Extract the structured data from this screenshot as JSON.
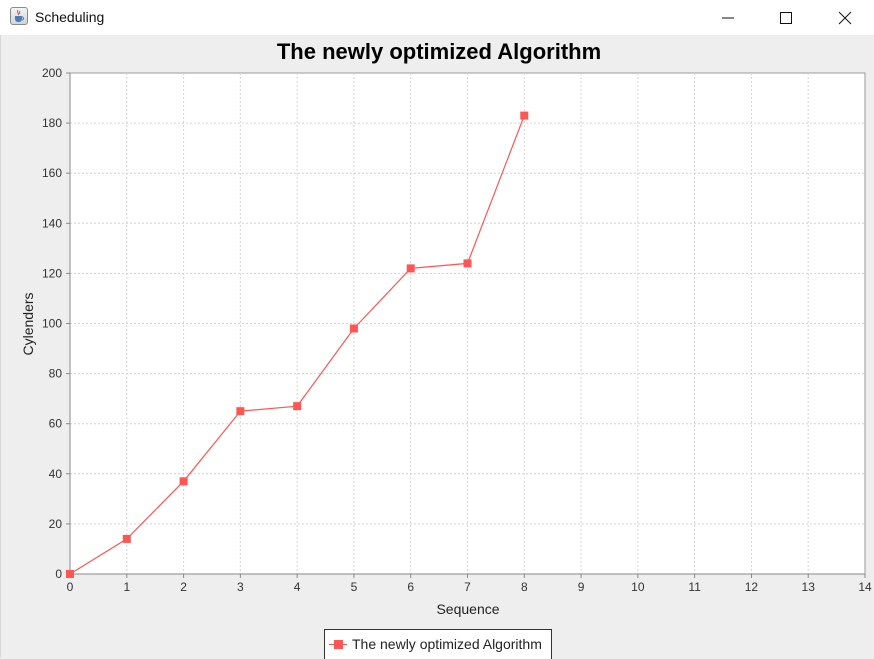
{
  "window": {
    "title": "Scheduling",
    "icon": "java-cup-icon",
    "controls": [
      "minimize-icon",
      "maximize-icon",
      "close-icon"
    ]
  },
  "chart_data": {
    "type": "line",
    "title": "The newly optimized Algorithm",
    "xlabel": "Sequence",
    "ylabel": "Cylenders",
    "xlim": [
      0,
      14
    ],
    "ylim": [
      0,
      200
    ],
    "x_ticks": [
      0,
      1,
      2,
      3,
      4,
      5,
      6,
      7,
      8,
      9,
      10,
      11,
      12,
      13,
      14
    ],
    "y_ticks": [
      0,
      20,
      40,
      60,
      80,
      100,
      120,
      140,
      160,
      180,
      200
    ],
    "grid": true,
    "legend_position": "bottom",
    "series": [
      {
        "name": "The newly optimized Algorithm",
        "color": "#ff5555",
        "marker": "square",
        "x": [
          0,
          1,
          2,
          3,
          4,
          5,
          6,
          7,
          8
        ],
        "y": [
          0,
          14,
          37,
          65,
          67,
          98,
          122,
          124,
          183
        ]
      }
    ]
  }
}
